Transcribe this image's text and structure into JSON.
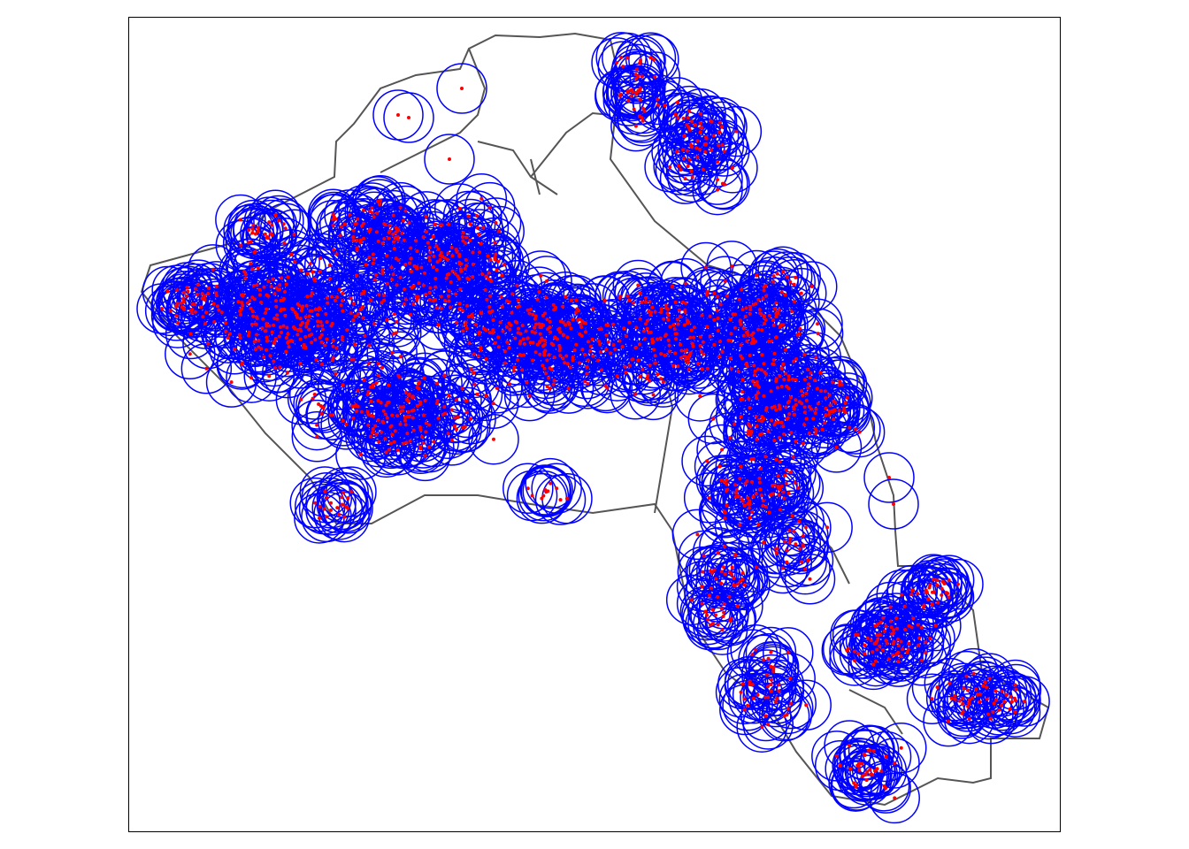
{
  "map": {
    "point_color": "red",
    "buffer_color": "blue",
    "boundary_color": "#555555",
    "frame_color": "black"
  }
}
